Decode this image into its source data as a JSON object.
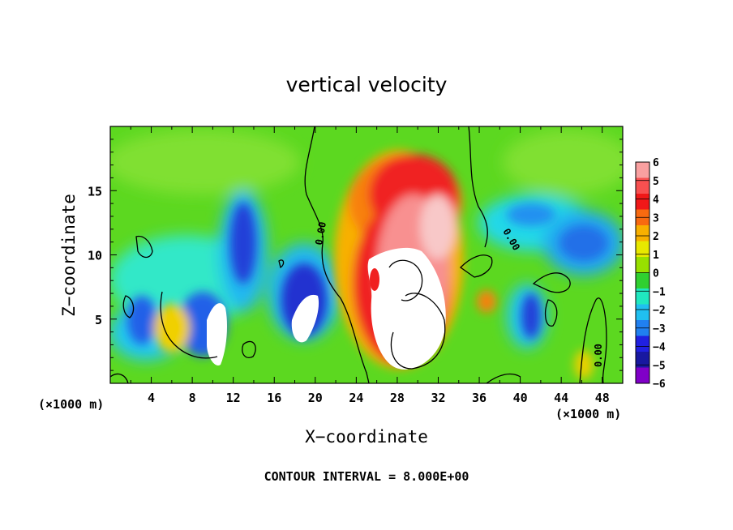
{
  "chart_data": {
    "type": "heatmap",
    "title": "vertical velocity",
    "xlabel": "X−coordinate",
    "ylabel": "Z−coordinate",
    "x_unit_left": "(×1000 m)",
    "x_unit_right": "(×1000 m)",
    "x_ticks": [
      "4",
      "8",
      "12",
      "16",
      "20",
      "24",
      "28",
      "32",
      "36",
      "40",
      "44",
      "48"
    ],
    "y_ticks": [
      "5",
      "10",
      "15"
    ],
    "xlim": [
      0,
      50
    ],
    "ylim": [
      0,
      20
    ],
    "colorbar": {
      "levels": [
        "6",
        "5",
        "4",
        "3",
        "2",
        "1",
        "0",
        "−1",
        "−2",
        "−3",
        "−4",
        "−5",
        "−6"
      ],
      "colors": [
        "#f9a0a0",
        "#f85050",
        "#f01818",
        "#f86a10",
        "#f8b000",
        "#e8e800",
        "#98e000",
        "#30d030",
        "#20e8c0",
        "#20c0f0",
        "#2080f0",
        "#2020e0",
        "#1818a0",
        "#8000c8"
      ]
    },
    "contour_label": "0.00",
    "features": [
      {
        "name": "updraft",
        "x_center": 29,
        "z_bottom": 1,
        "z_top": 18.5,
        "peak": "> 6"
      },
      {
        "name": "downdraft",
        "x_center": 11,
        "z_center": 4,
        "peak": "< -6"
      },
      {
        "name": "downdraft",
        "x_center": 19,
        "z_center": 6,
        "peak": "< -6"
      }
    ],
    "footer": "CONTOUR INTERVAL = 8.000E+00"
  }
}
